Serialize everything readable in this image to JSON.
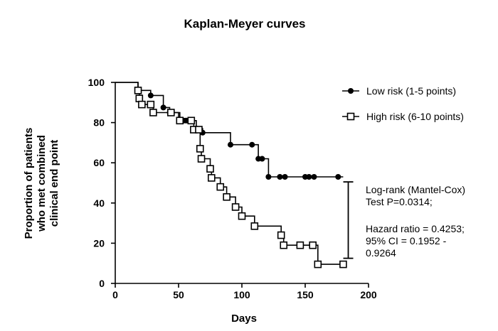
{
  "chart_data": {
    "type": "line",
    "title": "Kaplan-Meyer curves",
    "xlabel": "Days",
    "ylabel_lines": [
      "Proportion of patients",
      "who met combined",
      "clinical end point"
    ],
    "xlim": [
      0,
      200
    ],
    "ylim": [
      0,
      100
    ],
    "xticks": [
      0,
      50,
      100,
      150,
      200
    ],
    "yticks": [
      0,
      20,
      40,
      60,
      80,
      100
    ],
    "grid": false,
    "legend_position": "top-right",
    "series": [
      {
        "name": "Low risk (1-5 points)",
        "marker": "filled-circle",
        "color": "#000000",
        "steps": [
          [
            0,
            100
          ],
          [
            18,
            96
          ],
          [
            28,
            93.5
          ],
          [
            38,
            87.5
          ],
          [
            43,
            85
          ],
          [
            50,
            81
          ],
          [
            52,
            81
          ],
          [
            54,
            81
          ],
          [
            56,
            81
          ],
          [
            64,
            77
          ],
          [
            69,
            75
          ],
          [
            91,
            69
          ],
          [
            108,
            69
          ],
          [
            113,
            62
          ],
          [
            116,
            62
          ],
          [
            121,
            53
          ],
          [
            130,
            53
          ],
          [
            134,
            53
          ],
          [
            150,
            53
          ],
          [
            153,
            53
          ],
          [
            157,
            53
          ],
          [
            176,
            53
          ],
          [
            180,
            53
          ]
        ],
        "markers": [
          [
            18,
            96
          ],
          [
            28,
            93.5
          ],
          [
            38,
            87.5
          ],
          [
            43,
            85
          ],
          [
            52,
            81
          ],
          [
            54,
            81
          ],
          [
            56,
            81
          ],
          [
            64,
            77
          ],
          [
            69,
            75
          ],
          [
            91,
            69
          ],
          [
            108,
            69
          ],
          [
            113,
            62
          ],
          [
            116,
            62
          ],
          [
            121,
            53
          ],
          [
            130,
            53
          ],
          [
            134,
            53
          ],
          [
            150,
            53
          ],
          [
            153,
            53
          ],
          [
            157,
            53
          ],
          [
            176,
            53
          ]
        ]
      },
      {
        "name": "High risk (6-10 points)",
        "marker": "open-square",
        "color": "#000000",
        "steps": [
          [
            0,
            100
          ],
          [
            18,
            96
          ],
          [
            19,
            92
          ],
          [
            21,
            89
          ],
          [
            28,
            89
          ],
          [
            30,
            85
          ],
          [
            44,
            85
          ],
          [
            51,
            81
          ],
          [
            60,
            81
          ],
          [
            62,
            76.5
          ],
          [
            66,
            76.5
          ],
          [
            67,
            67
          ],
          [
            68,
            62
          ],
          [
            75,
            57
          ],
          [
            76,
            52.5
          ],
          [
            83,
            48
          ],
          [
            88,
            43
          ],
          [
            95,
            38
          ],
          [
            100,
            33.5
          ],
          [
            110,
            28.5
          ],
          [
            131,
            24
          ],
          [
            133,
            19
          ],
          [
            140,
            19
          ],
          [
            146,
            19
          ],
          [
            156,
            19
          ],
          [
            160,
            9.5
          ],
          [
            180,
            9.5
          ]
        ],
        "markers": [
          [
            18,
            96
          ],
          [
            19,
            92
          ],
          [
            21,
            89
          ],
          [
            28,
            89
          ],
          [
            30,
            85
          ],
          [
            44,
            85
          ],
          [
            51,
            81
          ],
          [
            60,
            81
          ],
          [
            62,
            76.5
          ],
          [
            66,
            76.5
          ],
          [
            67,
            67
          ],
          [
            68,
            62
          ],
          [
            75,
            57
          ],
          [
            76,
            52.5
          ],
          [
            83,
            48
          ],
          [
            88,
            43
          ],
          [
            95,
            38
          ],
          [
            100,
            33.5
          ],
          [
            110,
            28.5
          ],
          [
            131,
            24
          ],
          [
            133,
            19
          ],
          [
            146,
            19
          ],
          [
            156,
            19
          ],
          [
            160,
            9.5
          ],
          [
            180,
            9.5
          ]
        ]
      }
    ],
    "comparison_bracket": {
      "x": 184,
      "y_top": 50.5,
      "y_bottom": 12.5
    },
    "annotation_lines": [
      "Log-rank (Mantel-Cox)",
      "Test P=0.0314;",
      "",
      "Hazard ratio = 0.4253;",
      "95% CI = 0.1952 -",
      "0.9264"
    ]
  }
}
